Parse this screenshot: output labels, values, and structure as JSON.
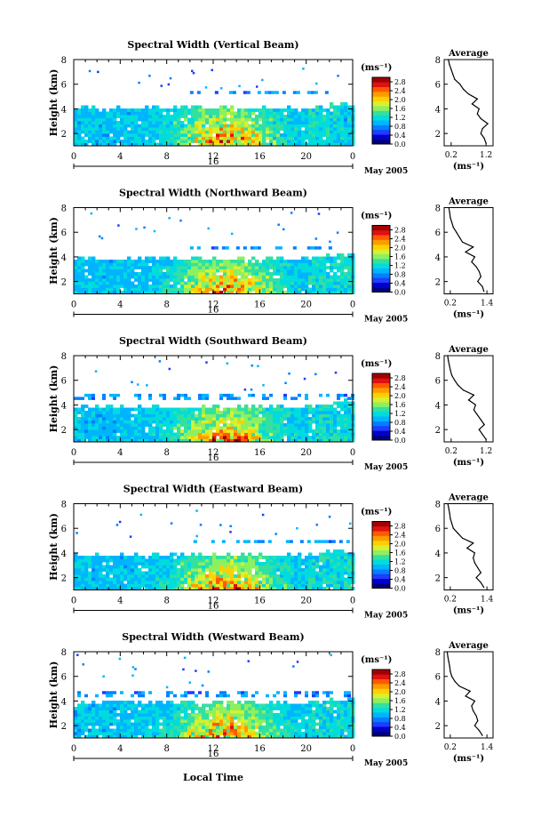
{
  "figure": {
    "x_axis_label": "Local Time",
    "date_label": "May 2005",
    "day_label": "16",
    "colorbar_unit": "(ms⁻¹)",
    "average_title": "Average",
    "average_xlabel": "(ms⁻¹)",
    "y_axis_label": "Height (km)"
  },
  "chart_data": [
    {
      "type": "heatmap",
      "title": "Spectral Width (Vertical Beam)",
      "ylabel": "Height (km)",
      "xlabel": "Local Time",
      "x_ticks": [
        "0",
        "4",
        "8",
        "12",
        "16",
        "20",
        "0"
      ],
      "y_ticks": [
        "2",
        "4",
        "6",
        "8"
      ],
      "ylim": [
        1,
        8
      ],
      "xlim": [
        0,
        24
      ],
      "colorbar": {
        "ticks": [
          "0.0",
          "0.4",
          "0.8",
          "1.2",
          "1.6",
          "2.0",
          "2.4",
          "2.8"
        ],
        "range": [
          0,
          3.0
        ]
      },
      "average_profile": {
        "title": "Average",
        "xlabel": "(ms⁻¹)",
        "x_ticks": [
          "0.2",
          "1.2"
        ],
        "y_ticks": [
          "2",
          "4",
          "6",
          "8"
        ],
        "xlim": [
          0.0,
          1.4
        ],
        "points": [
          [
            1.2,
            1.2
          ],
          [
            1.15,
            1.6
          ],
          [
            1.05,
            2.0
          ],
          [
            1.1,
            2.4
          ],
          [
            1.25,
            2.8
          ],
          [
            1.05,
            3.2
          ],
          [
            0.95,
            3.6
          ],
          [
            1.0,
            4.0
          ],
          [
            0.8,
            4.4
          ],
          [
            0.95,
            4.8
          ],
          [
            0.7,
            5.2
          ],
          [
            0.55,
            5.6
          ],
          [
            0.45,
            6.0
          ],
          [
            0.3,
            6.4
          ],
          [
            0.25,
            6.8
          ],
          [
            0.2,
            7.2
          ],
          [
            0.15,
            7.6
          ],
          [
            0.12,
            8.0
          ]
        ]
      },
      "cloud": {
        "top_km": 4.2,
        "band_top_km": 5.6,
        "band_bottom_km": 5.2,
        "band_x": [
          10,
          22
        ]
      }
    },
    {
      "type": "heatmap",
      "title": "Spectral Width (Northward Beam)",
      "ylabel": "Height (km)",
      "xlabel": "Local Time",
      "x_ticks": [
        "0",
        "4",
        "8",
        "12",
        "16",
        "20",
        "0"
      ],
      "y_ticks": [
        "2",
        "4",
        "6",
        "8"
      ],
      "ylim": [
        1,
        8
      ],
      "xlim": [
        0,
        24
      ],
      "colorbar": {
        "ticks": [
          "0.0",
          "0.4",
          "0.8",
          "1.2",
          "1.6",
          "2.0",
          "2.4",
          "2.8"
        ],
        "range": [
          0,
          3.0
        ]
      },
      "average_profile": {
        "title": "Average",
        "xlabel": "(ms⁻¹)",
        "x_ticks": [
          "0.2",
          "1.4"
        ],
        "y_ticks": [
          "2",
          "4",
          "6",
          "8"
        ],
        "xlim": [
          0.0,
          1.6
        ],
        "points": [
          [
            1.3,
            1.2
          ],
          [
            1.25,
            1.6
          ],
          [
            1.1,
            2.0
          ],
          [
            1.2,
            2.4
          ],
          [
            1.15,
            2.8
          ],
          [
            1.05,
            3.2
          ],
          [
            0.9,
            3.6
          ],
          [
            1.0,
            4.0
          ],
          [
            0.7,
            4.4
          ],
          [
            0.95,
            4.8
          ],
          [
            0.6,
            5.2
          ],
          [
            0.5,
            5.6
          ],
          [
            0.4,
            6.0
          ],
          [
            0.3,
            6.4
          ],
          [
            0.25,
            6.8
          ],
          [
            0.2,
            7.2
          ],
          [
            0.18,
            7.6
          ],
          [
            0.15,
            8.0
          ]
        ]
      },
      "cloud": {
        "top_km": 4.0,
        "band_top_km": 5.1,
        "band_bottom_km": 4.6,
        "band_x": [
          10,
          22
        ]
      }
    },
    {
      "type": "heatmap",
      "title": "Spectral Width (Southward Beam)",
      "ylabel": "Height (km)",
      "xlabel": "Local Time",
      "x_ticks": [
        "0",
        "4",
        "8",
        "12",
        "16",
        "20",
        "0"
      ],
      "y_ticks": [
        "2",
        "4",
        "6",
        "8"
      ],
      "ylim": [
        1,
        8
      ],
      "xlim": [
        0,
        24
      ],
      "colorbar": {
        "ticks": [
          "0.0",
          "0.4",
          "0.8",
          "1.2",
          "1.6",
          "2.0",
          "2.4",
          "2.8"
        ],
        "range": [
          0,
          3.0
        ]
      },
      "average_profile": {
        "title": "Average",
        "xlabel": "(ms⁻¹)",
        "x_ticks": [
          "0.2",
          "1.2"
        ],
        "y_ticks": [
          "2",
          "4",
          "6",
          "8"
        ],
        "xlim": [
          0.0,
          1.4
        ],
        "points": [
          [
            1.2,
            1.2
          ],
          [
            1.1,
            1.6
          ],
          [
            1.0,
            2.0
          ],
          [
            1.15,
            2.4
          ],
          [
            1.05,
            2.8
          ],
          [
            0.95,
            3.2
          ],
          [
            0.85,
            3.6
          ],
          [
            0.9,
            4.0
          ],
          [
            0.7,
            4.4
          ],
          [
            0.85,
            4.8
          ],
          [
            0.55,
            5.2
          ],
          [
            0.4,
            5.6
          ],
          [
            0.3,
            6.0
          ],
          [
            0.22,
            6.4
          ],
          [
            0.18,
            6.8
          ],
          [
            0.15,
            7.2
          ],
          [
            0.12,
            7.6
          ],
          [
            0.1,
            8.0
          ]
        ]
      },
      "cloud": {
        "top_km": 4.0,
        "band_top_km": 5.0,
        "band_bottom_km": 4.4,
        "band_x": [
          0,
          24
        ]
      }
    },
    {
      "type": "heatmap",
      "title": "Spectral Width (Eastward Beam)",
      "ylabel": "Height (km)",
      "xlabel": "Local Time",
      "x_ticks": [
        "0",
        "4",
        "8",
        "12",
        "16",
        "20",
        "0"
      ],
      "y_ticks": [
        "2",
        "4",
        "6",
        "8"
      ],
      "ylim": [
        1,
        8
      ],
      "xlim": [
        0,
        24
      ],
      "colorbar": {
        "ticks": [
          "0.0",
          "0.4",
          "0.8",
          "1.2",
          "1.6",
          "2.0",
          "2.4",
          "2.8"
        ],
        "range": [
          0,
          3.0
        ]
      },
      "average_profile": {
        "title": "Average",
        "xlabel": "(ms⁻¹)",
        "x_ticks": [
          "0.2",
          "1.4"
        ],
        "y_ticks": [
          "2",
          "4",
          "6",
          "8"
        ],
        "xlim": [
          0.0,
          1.6
        ],
        "points": [
          [
            1.3,
            1.2
          ],
          [
            1.2,
            1.6
          ],
          [
            1.05,
            2.0
          ],
          [
            1.2,
            2.4
          ],
          [
            1.1,
            2.8
          ],
          [
            1.0,
            3.2
          ],
          [
            0.95,
            3.6
          ],
          [
            1.0,
            4.0
          ],
          [
            0.75,
            4.4
          ],
          [
            0.95,
            4.8
          ],
          [
            0.6,
            5.2
          ],
          [
            0.45,
            5.6
          ],
          [
            0.3,
            6.0
          ],
          [
            0.25,
            6.4
          ],
          [
            0.2,
            6.8
          ],
          [
            0.18,
            7.2
          ],
          [
            0.15,
            7.6
          ],
          [
            0.12,
            8.0
          ]
        ]
      },
      "cloud": {
        "top_km": 4.0,
        "band_top_km": 5.2,
        "band_bottom_km": 4.8,
        "band_x": [
          10,
          24
        ]
      }
    },
    {
      "type": "heatmap",
      "title": "Spectral Width (Westward Beam)",
      "ylabel": "Height (km)",
      "xlabel": "Local Time",
      "x_ticks": [
        "0",
        "4",
        "8",
        "12",
        "16",
        "20",
        "0"
      ],
      "y_ticks": [
        "2",
        "4",
        "6",
        "8"
      ],
      "ylim": [
        1,
        8
      ],
      "xlim": [
        0,
        24
      ],
      "colorbar": {
        "ticks": [
          "0.0",
          "0.4",
          "0.8",
          "1.2",
          "1.6",
          "2.0",
          "2.4",
          "2.8"
        ],
        "range": [
          0,
          3.0
        ]
      },
      "average_profile": {
        "title": "Average",
        "xlabel": "(ms⁻¹)",
        "x_ticks": [
          "0.2",
          "1.4"
        ],
        "y_ticks": [
          "2",
          "4",
          "6",
          "8"
        ],
        "xlim": [
          0.0,
          1.6
        ],
        "points": [
          [
            1.25,
            1.2
          ],
          [
            1.15,
            1.6
          ],
          [
            1.0,
            2.0
          ],
          [
            1.1,
            2.4
          ],
          [
            1.05,
            2.8
          ],
          [
            0.95,
            3.2
          ],
          [
            0.9,
            3.6
          ],
          [
            1.0,
            4.0
          ],
          [
            0.7,
            4.4
          ],
          [
            0.85,
            4.8
          ],
          [
            0.5,
            5.2
          ],
          [
            0.35,
            5.6
          ],
          [
            0.25,
            6.0
          ],
          [
            0.2,
            6.4
          ],
          [
            0.18,
            6.8
          ],
          [
            0.15,
            7.2
          ],
          [
            0.12,
            7.6
          ],
          [
            0.1,
            8.0
          ]
        ]
      },
      "cloud": {
        "top_km": 4.0,
        "band_top_km": 5.0,
        "band_bottom_km": 4.3,
        "band_x": [
          0,
          24
        ]
      }
    }
  ]
}
